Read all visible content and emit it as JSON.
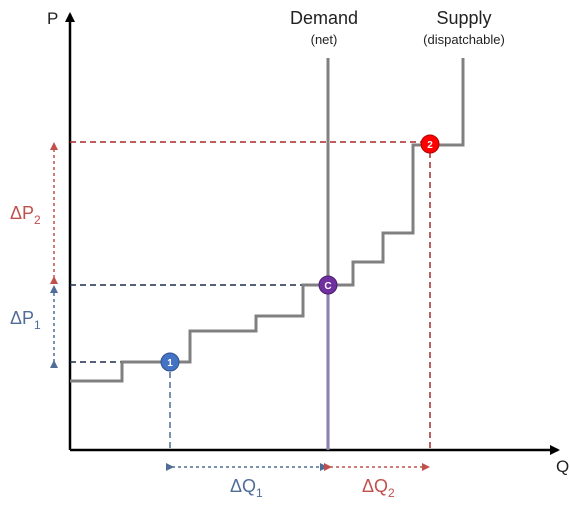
{
  "axes": {
    "y_label": "P",
    "x_label": "Q"
  },
  "curves": {
    "demand": {
      "label": "Demand",
      "sublabel": "(net)"
    },
    "supply": {
      "label": "Supply",
      "sublabel": "(dispatchable)"
    }
  },
  "points": [
    {
      "id": "1",
      "label": "1",
      "color": "#4472c4"
    },
    {
      "id": "c",
      "label": "C",
      "color": "#7030a0"
    },
    {
      "id": "2",
      "label": "2",
      "color": "#ff0000"
    }
  ],
  "deltas": {
    "dp2": {
      "base": "ΔP",
      "sub": "2"
    },
    "dp1": {
      "base": "ΔP",
      "sub": "1"
    },
    "dq1": {
      "base": "ΔQ",
      "sub": "1"
    },
    "dq2": {
      "base": "ΔQ",
      "sub": "2"
    }
  },
  "colors": {
    "red": "#c0504d",
    "blue": "#4f6d96",
    "curve": "#808080",
    "axis": "#000000"
  }
}
